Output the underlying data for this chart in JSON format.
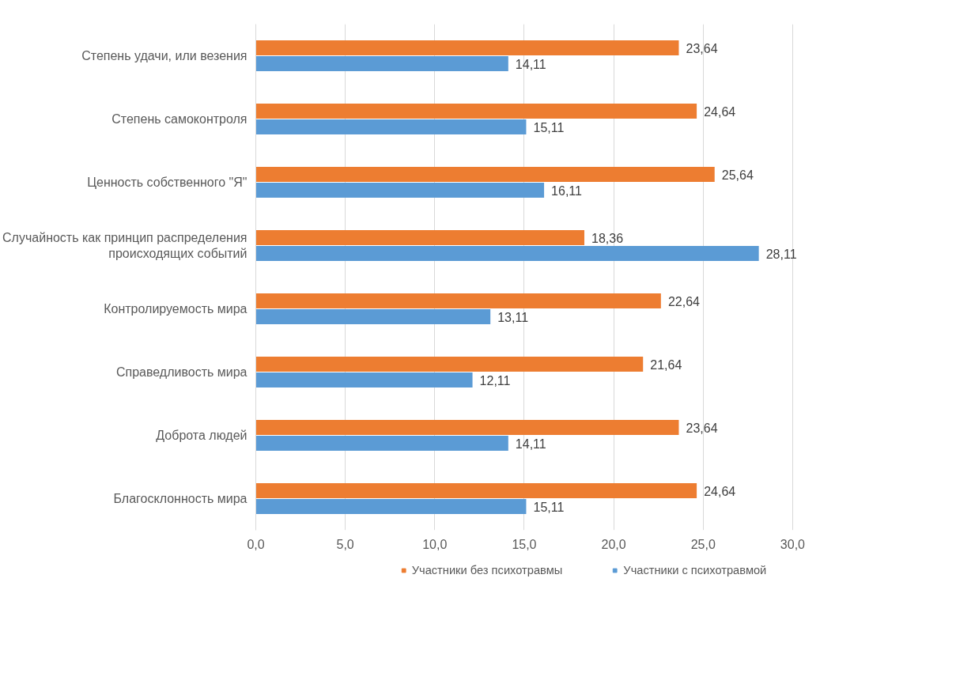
{
  "chart_data": {
    "type": "bar",
    "orientation": "horizontal",
    "categories": [
      "Степень удачи, или везения",
      "Степень самоконтроля",
      "Ценность собственного \"Я\"",
      "Случайность как принцип распределения\nпроисходящих событий",
      "Контролируемость мира",
      "Справедливость мира",
      "Доброта людей",
      "Благосклонность мира"
    ],
    "series": [
      {
        "name": "Участники без психотравмы",
        "color": "#ed7d31",
        "values": [
          23.64,
          24.64,
          25.64,
          18.36,
          22.64,
          21.64,
          23.64,
          24.64
        ],
        "value_labels": [
          "23,64",
          "24,64",
          "25,64",
          "18,36",
          "22,64",
          "21,64",
          "23,64",
          "24,64"
        ]
      },
      {
        "name": "Участники с психотравмой",
        "color": "#5b9bd5",
        "values": [
          14.11,
          15.11,
          16.11,
          28.11,
          13.11,
          12.11,
          14.11,
          15.11
        ],
        "value_labels": [
          "14,11",
          "15,11",
          "16,11",
          "28,11",
          "13,11",
          "12,11",
          "14,11",
          "15,11"
        ]
      }
    ],
    "xlim": [
      0,
      30
    ],
    "xticks": [
      {
        "value": 0,
        "label": "0,0"
      },
      {
        "value": 5,
        "label": "5,0"
      },
      {
        "value": 10,
        "label": "10,0"
      },
      {
        "value": 15,
        "label": "15,0"
      },
      {
        "value": 20,
        "label": "20,0"
      },
      {
        "value": 25,
        "label": "25,0"
      },
      {
        "value": 30,
        "label": "30,0"
      }
    ],
    "grid": "x",
    "legend": "bottom"
  }
}
